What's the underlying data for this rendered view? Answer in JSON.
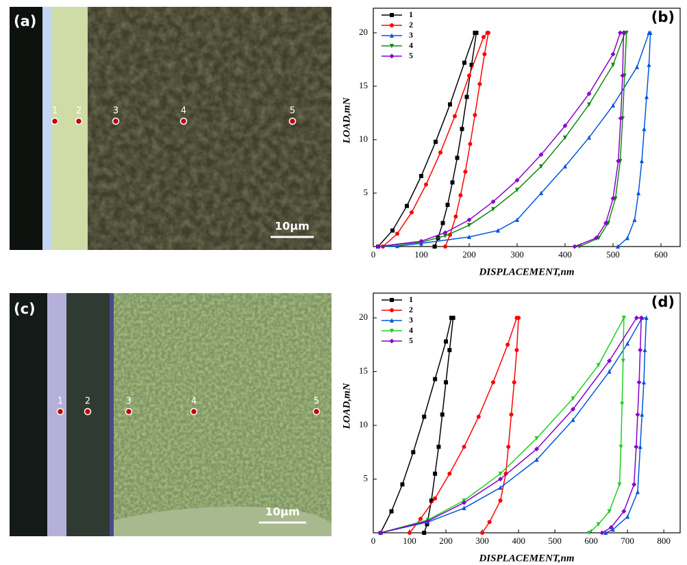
{
  "micrographs": [
    {
      "label": "(a)",
      "scale_bar": "10μm",
      "points": [
        "1",
        "2",
        "3",
        "4",
        "5"
      ]
    },
    {
      "label": "(c)",
      "scale_bar": "10μm",
      "points": [
        "1",
        "2",
        "3",
        "4",
        "5"
      ]
    }
  ],
  "chart_data": [
    {
      "type": "line",
      "panel_label": "(b)",
      "x_label": "DISPLACEMENT,nm",
      "y_label": "LOAD,mN",
      "xlim": [
        0,
        640
      ],
      "ylim": [
        0,
        22.3
      ],
      "xticks": [
        0,
        100,
        200,
        300,
        400,
        500,
        600
      ],
      "yticks": [
        5,
        10,
        15,
        20
      ],
      "legend": "upper-left",
      "series": [
        {
          "name": "1",
          "color": "#000000",
          "marker": "square",
          "x": [
            10,
            40,
            70,
            100,
            130,
            160,
            190,
            212,
            215,
            205,
            195,
            185,
            175,
            165,
            155,
            145,
            135,
            128
          ],
          "values": [
            0,
            1.5,
            3.8,
            6.6,
            9.8,
            13.3,
            17.2,
            20,
            20,
            17,
            14,
            11,
            8.3,
            6,
            3.9,
            2.2,
            0.8,
            0
          ]
        },
        {
          "name": "2",
          "color": "#ff0000",
          "marker": "circle",
          "x": [
            20,
            50,
            80,
            110,
            140,
            170,
            200,
            230,
            238,
            240,
            232,
            222,
            212,
            202,
            192,
            182,
            172,
            160,
            150
          ],
          "values": [
            0,
            1.2,
            3.2,
            5.8,
            8.8,
            12.2,
            16,
            19.6,
            20,
            20,
            18,
            15.2,
            12.3,
            9.6,
            7,
            4.8,
            2.8,
            1.1,
            0
          ]
        },
        {
          "name": "3",
          "color": "#0055dd",
          "marker": "triangle",
          "x": [
            10,
            50,
            100,
            200,
            260,
            300,
            350,
            400,
            450,
            500,
            550,
            575,
            578,
            575,
            570,
            565,
            560,
            553,
            545,
            530,
            510
          ],
          "values": [
            0,
            0.05,
            0.3,
            0.9,
            1.5,
            2.5,
            5,
            7.5,
            10.2,
            13.2,
            16.8,
            20,
            20,
            17,
            14,
            11,
            8,
            5,
            2.5,
            0.8,
            0
          ]
        },
        {
          "name": "4",
          "color": "#118811",
          "marker": "down-triangle",
          "x": [
            10,
            100,
            150,
            200,
            250,
            300,
            350,
            400,
            450,
            500,
            525,
            528,
            524,
            520,
            515,
            505,
            490,
            470,
            430
          ],
          "values": [
            0,
            0.4,
            1,
            2,
            3.5,
            5.3,
            7.5,
            10.2,
            13.3,
            17,
            20,
            20,
            16,
            12,
            8,
            4.5,
            2.2,
            0.8,
            0
          ]
        },
        {
          "name": "5",
          "color": "#8800cc",
          "marker": "diamond",
          "x": [
            10,
            100,
            150,
            200,
            250,
            300,
            350,
            400,
            450,
            500,
            515,
            522,
            520,
            516,
            511,
            500,
            485,
            465,
            420
          ],
          "values": [
            0,
            0.5,
            1.3,
            2.5,
            4.2,
            6.2,
            8.6,
            11.3,
            14.3,
            18,
            20,
            20,
            16,
            12,
            8,
            4.5,
            2.2,
            0.8,
            0
          ]
        }
      ]
    },
    {
      "type": "line",
      "panel_label": "(d)",
      "x_label": "DISPLACEMENT,nm",
      "y_label": "LOAD,mN",
      "xlim": [
        0,
        845
      ],
      "ylim": [
        0,
        22.3
      ],
      "xticks": [
        0,
        100,
        200,
        300,
        400,
        500,
        600,
        700,
        800
      ],
      "yticks": [
        5,
        10,
        15,
        20
      ],
      "legend": "upper-left",
      "series": [
        {
          "name": "1",
          "color": "#000000",
          "marker": "square",
          "x": [
            20,
            50,
            80,
            110,
            140,
            170,
            200,
            215,
            220,
            210,
            200,
            190,
            180,
            170,
            160,
            148,
            140
          ],
          "values": [
            0,
            2,
            4.5,
            7.5,
            10.8,
            14.3,
            17.8,
            20,
            20,
            17,
            14,
            11,
            8,
            5.5,
            3,
            0.8,
            0
          ]
        },
        {
          "name": "2",
          "color": "#ff0000",
          "marker": "circle",
          "x": [
            100,
            130,
            170,
            210,
            250,
            290,
            330,
            370,
            395,
            400,
            395,
            388,
            380,
            372,
            365,
            350,
            320,
            300
          ],
          "values": [
            0,
            1.3,
            3.2,
            5.5,
            8,
            10.8,
            14,
            17.5,
            20,
            20,
            17,
            14,
            11,
            8,
            5.5,
            3,
            1,
            0
          ]
        },
        {
          "name": "3",
          "color": "#0055dd",
          "marker": "triangle",
          "x": [
            20,
            150,
            250,
            350,
            450,
            550,
            650,
            700,
            740,
            752,
            748,
            745,
            740,
            735,
            728,
            700,
            660,
            640
          ],
          "values": [
            0,
            1,
            2.3,
            4.2,
            6.8,
            10.5,
            15,
            17.6,
            20,
            20,
            17,
            14,
            11,
            8,
            3.8,
            1.5,
            0.3,
            0
          ]
        },
        {
          "name": "4",
          "color": "#22cc22",
          "marker": "down-triangle",
          "x": [
            20,
            150,
            250,
            350,
            450,
            550,
            620,
            690,
            690,
            688,
            685,
            682,
            678,
            650,
            620,
            595
          ],
          "values": [
            0,
            1.2,
            3,
            5.5,
            8.8,
            12.5,
            15.6,
            20,
            20,
            16,
            12,
            8,
            4.5,
            2,
            0.8,
            0
          ]
        },
        {
          "name": "5",
          "color": "#8800cc",
          "marker": "diamond",
          "x": [
            20,
            150,
            250,
            350,
            450,
            550,
            650,
            725,
            738,
            735,
            732,
            728,
            724,
            718,
            690,
            655,
            630
          ],
          "values": [
            0,
            1.1,
            2.8,
            5,
            7.8,
            11.5,
            16,
            20,
            20,
            17,
            14,
            11,
            8,
            4.5,
            2,
            0.5,
            0
          ]
        }
      ]
    }
  ]
}
